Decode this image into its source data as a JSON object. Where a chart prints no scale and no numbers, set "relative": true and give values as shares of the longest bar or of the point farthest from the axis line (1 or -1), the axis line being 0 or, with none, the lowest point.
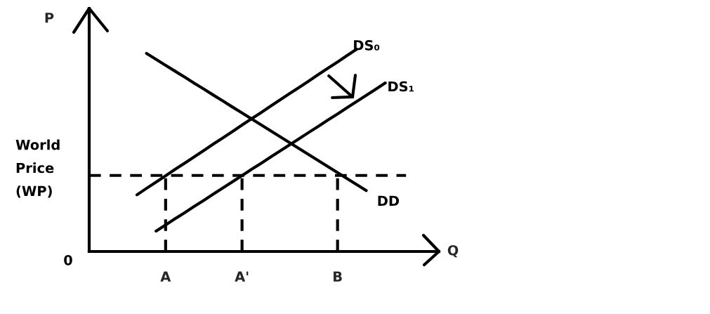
{
  "chart_data": {
    "type": "line",
    "relative": true,
    "xlabel": "Q",
    "ylabel": "P",
    "tick_labels": "x",
    "marker": "none",
    "line_style": "solid",
    "categories": [
      null,
      null,
      null,
      null,
      null,
      null,
      null,
      null,
      "A",
      null,
      null,
      null,
      null,
      null,
      null,
      null,
      "A'",
      null,
      null,
      null,
      null,
      null,
      null,
      null,
      null,
      null,
      "B",
      null,
      null,
      null,
      null,
      null
    ],
    "series": [
      {
        "name": "DS₀",
        "color": "#000000",
        "values": [
          null,
          null,
          null,
          null,
          null,
          0.28,
          0.312,
          0.343,
          0.374,
          0.406,
          0.437,
          0.468,
          0.499,
          0.531,
          0.562,
          0.593,
          0.625,
          0.656,
          0.687,
          0.719,
          0.75,
          0.781,
          0.812,
          0.843,
          0.875,
          0.906,
          0.937,
          0.969,
          1.0,
          null,
          null,
          null
        ]
      },
      {
        "name": "DS₁",
        "color": "#000000",
        "values": [
          null,
          null,
          null,
          null,
          null,
          null,
          null,
          0.101,
          0.131,
          0.162,
          0.192,
          0.223,
          0.253,
          0.284,
          0.314,
          0.345,
          0.375,
          0.406,
          0.436,
          0.467,
          0.497,
          0.528,
          0.558,
          0.589,
          0.619,
          0.65,
          0.68,
          0.711,
          0.741,
          0.772,
          0.802,
          0.833
        ]
      },
      {
        "name": "DD",
        "color": "#000000",
        "values": [
          null,
          null,
          null,
          null,
          null,
          null,
          0.979,
          0.95,
          0.92,
          0.891,
          0.862,
          0.832,
          0.803,
          0.773,
          0.744,
          0.714,
          0.685,
          0.655,
          0.626,
          0.596,
          0.567,
          0.537,
          0.508,
          0.478,
          0.449,
          0.419,
          0.39,
          0.36,
          0.331,
          0.301,
          null,
          null
        ]
      }
    ],
    "ref_lines": [
      {
        "axis": "y",
        "value": 0.376,
        "label": "World\nPrice\n(WP)",
        "line_style": "dashed",
        "color": "#000000"
      },
      {
        "axis": "x",
        "value": "A",
        "line_style": "dashed",
        "color": "#000000"
      },
      {
        "axis": "x",
        "value": "A'",
        "line_style": "dashed",
        "color": "#000000"
      },
      {
        "axis": "x",
        "value": "B",
        "line_style": "dashed",
        "color": "#000000"
      }
    ],
    "annotations": [
      "0"
    ]
  }
}
